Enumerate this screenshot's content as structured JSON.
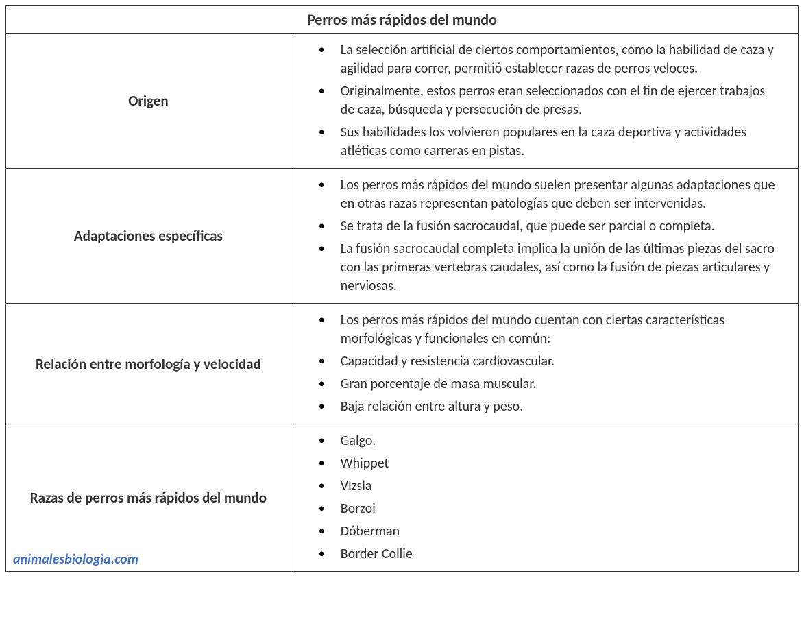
{
  "table": {
    "title": "Perros más rápidos del mundo",
    "rows": [
      {
        "label": "Origen",
        "items": [
          "La selección artificial de ciertos comportamientos, como la habilidad de caza y agilidad para correr, permitió establecer razas de perros veloces.",
          "Originalmente, estos perros eran seleccionados con el fin de ejercer trabajos de caza, búsqueda y persecución de presas.",
          "Sus habilidades los volvieron populares en la caza deportiva y actividades atléticas como carreras en pistas."
        ]
      },
      {
        "label": "Adaptaciones específicas",
        "items": [
          "Los perros más rápidos del mundo suelen presentar algunas adaptaciones que en otras razas representan patologías que deben ser intervenidas.",
          "Se trata de la fusión sacrocaudal, que puede ser parcial o completa.",
          "La fusión sacrocaudal completa implica la unión de las últimas piezas del sacro con las primeras vertebras caudales, así como la fusión de piezas articulares y nerviosas."
        ]
      },
      {
        "label": "Relación entre morfología y velocidad",
        "items": [
          "Los perros más rápidos del mundo cuentan con ciertas características morfológicas y funcionales en común:",
          "Capacidad y resistencia cardiovascular.",
          "Gran porcentaje de masa muscular.",
          "Baja relación entre altura y peso."
        ]
      },
      {
        "label": "Razas de perros más rápidos del mundo",
        "items": [
          "Galgo.",
          "Whippet",
          "Vizsla",
          "Borzoi",
          "Dóberman",
          "Border Collie"
        ]
      }
    ],
    "watermark": "animalesbiologia.com",
    "colors": {
      "border": "#333333",
      "text": "#333333",
      "watermark": "#4472c4",
      "background": "#ffffff"
    },
    "font": {
      "family": "Calibri",
      "title_size": 22,
      "label_size": 21,
      "body_size": 20
    }
  }
}
